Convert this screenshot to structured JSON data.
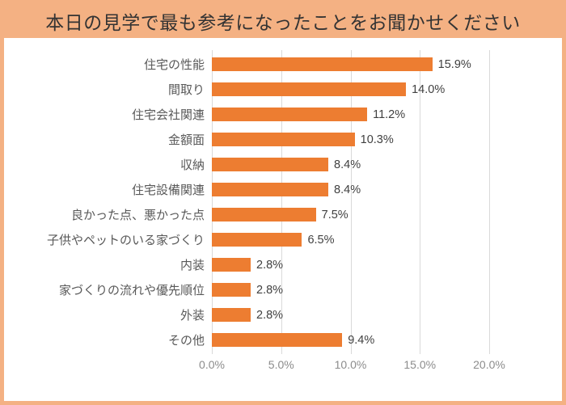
{
  "header": {
    "title": "本日の見学で最も参考になったことをお聞かせください"
  },
  "chart_data": {
    "type": "bar",
    "orientation": "horizontal",
    "title": "本日の見学で最も参考になったことをお聞かせください",
    "categories": [
      "住宅の性能",
      "間取り",
      "住宅会社関連",
      "金額面",
      "収納",
      "住宅設備関連",
      "良かった点、悪かった点",
      "子供やペットのいる家づくり",
      "内装",
      "家づくりの流れや優先順位",
      "外装",
      "その他"
    ],
    "values": [
      15.9,
      14.0,
      11.2,
      10.3,
      8.4,
      8.4,
      7.5,
      6.5,
      2.8,
      2.8,
      2.8,
      9.4
    ],
    "value_labels": [
      "15.9%",
      "14.0%",
      "11.2%",
      "10.3%",
      "8.4%",
      "8.4%",
      "7.5%",
      "6.5%",
      "2.8%",
      "2.8%",
      "2.8%",
      "9.4%"
    ],
    "xlabel": "",
    "ylabel": "",
    "xlim": [
      0,
      20
    ],
    "x_ticks": [
      "0.0%",
      "5.0%",
      "10.0%",
      "15.0%",
      "20.0%"
    ],
    "grid": true,
    "legend": false,
    "bar_color": "#ED7D31",
    "gridline_color": "#D9D9D9"
  },
  "colors": {
    "accent_orange": "#ED7D31",
    "header_background": "#F4B183",
    "page_border": "#F4B183",
    "category_label": "#595959",
    "value_label": "#404040",
    "tick_label": "#8C8C8C",
    "title_text": "#333333"
  }
}
